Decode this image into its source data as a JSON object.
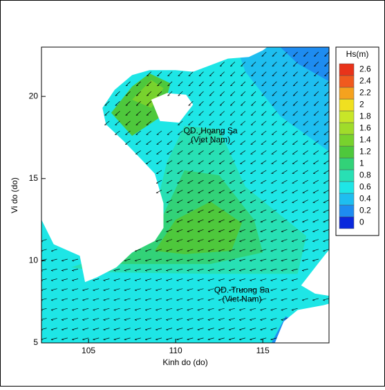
{
  "chart_data": {
    "type": "contour",
    "xlabel": "Kinh do (do)",
    "ylabel": "Vi do (do)",
    "xlim": [
      102.3,
      118.8
    ],
    "ylim": [
      5,
      23
    ],
    "xticks": [
      105,
      110,
      115
    ],
    "yticks": [
      5,
      10,
      15,
      20
    ],
    "annotations": [
      {
        "text": "QD. Hoang Sa",
        "sub": "(Viet Nam)",
        "x": 112,
        "y": 17.6
      },
      {
        "text": "QD. Truong Sa",
        "sub": "(Viet Nam)",
        "x": 113.8,
        "y": 7.9
      }
    ],
    "colorbar": {
      "title": "Hs(m)",
      "levels": [
        0,
        0.2,
        0.4,
        0.6,
        0.8,
        1,
        1.2,
        1.4,
        1.6,
        1.8,
        2,
        2.2,
        2.4,
        2.6
      ],
      "colors": [
        "#0a28dc",
        "#1e8cf0",
        "#1ebef0",
        "#1ee6e6",
        "#28e0b4",
        "#32d278",
        "#4ec83c",
        "#78d22d",
        "#a0dc2a",
        "#c8e628",
        "#f0e020",
        "#f5a21e",
        "#f05a1e",
        "#e8331a"
      ]
    }
  }
}
